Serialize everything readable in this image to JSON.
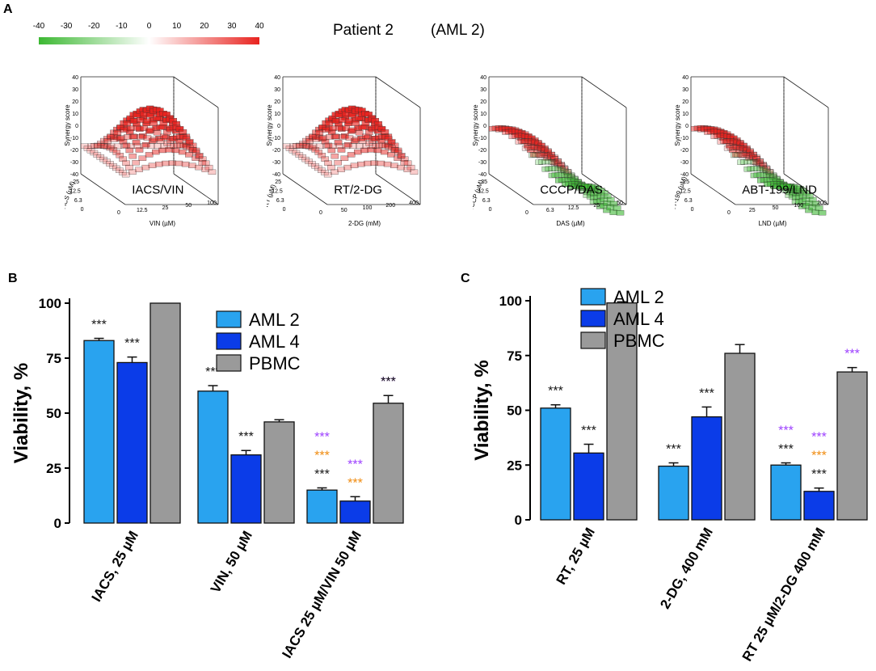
{
  "panel_a": {
    "letter": "A",
    "title": "Patient 2",
    "subtitle": "(AML 2)",
    "scale": {
      "ticks": [
        "-40",
        "-30",
        "-20",
        "-10",
        "0",
        "10",
        "20",
        "30",
        "40"
      ],
      "colors": {
        "neg": "#3cb832",
        "zero": "#ffffff",
        "pos": "#e8231f"
      }
    },
    "surfaces": [
      {
        "label": "IACS/VIN",
        "z_label": "Synergy score",
        "z_ticks": [
          "40",
          "30",
          "20",
          "10",
          "0",
          "-10",
          "-20",
          "-30",
          "-40"
        ],
        "y_label": "IACS (µM)",
        "y_ticks": [
          "25",
          "12.5",
          "6.3",
          "0"
        ],
        "x_label": "VIN (µM)",
        "x_ticks": [
          "0",
          "12.5",
          "25",
          "50",
          "100"
        ],
        "tone": "red"
      },
      {
        "label": "RT/2-DG",
        "z_label": "Synergy score",
        "z_ticks": [
          "40",
          "30",
          "20",
          "10",
          "0",
          "-10",
          "-20",
          "-30",
          "-40"
        ],
        "y_label": "RT (µM)",
        "y_ticks": [
          "25",
          "12.5",
          "6.3",
          "0"
        ],
        "x_label": "2-DG (mM)",
        "x_ticks": [
          "0",
          "50",
          "100",
          "200",
          "400"
        ],
        "tone": "red"
      },
      {
        "label": "CCCP/DAS",
        "z_label": "Synergy score",
        "z_ticks": [
          "40",
          "30",
          "20",
          "10",
          "0",
          "-10",
          "-20",
          "-30",
          "-40"
        ],
        "y_label": "CCCP (µM)",
        "y_ticks": [
          "25",
          "12.5",
          "6.3",
          "0"
        ],
        "x_label": "DAS (µM)",
        "x_ticks": [
          "0",
          "6.3",
          "12.5",
          "25",
          "50"
        ],
        "tone": "mixed"
      },
      {
        "label": "ABT-199/LND",
        "z_label": "Synergy score",
        "z_ticks": [
          "40",
          "30",
          "20",
          "10",
          "0",
          "-10",
          "-20",
          "-30",
          "-40"
        ],
        "y_label": "ABT-199 (µM)",
        "y_ticks": [
          "25",
          "12.5",
          "6.3",
          "0"
        ],
        "x_label": "LND (µM)",
        "x_ticks": [
          "0",
          "25",
          "50",
          "100",
          "200"
        ],
        "tone": "mixed"
      }
    ]
  },
  "chart_data": [
    {
      "panel": "B",
      "type": "bar",
      "title": "",
      "xlabel": "",
      "ylabel": "Viability, %",
      "ylim": [
        0,
        100
      ],
      "yticks": [
        "0",
        "25",
        "50",
        "75",
        "100"
      ],
      "categories": [
        "IACS, 25 µM",
        "VIN, 50 µM",
        "IACS 25 µM/VIN 50 µM"
      ],
      "legend": {
        "position": "top-right",
        "entries": [
          "AML 2",
          "AML 4",
          "PBMC"
        ]
      },
      "series": [
        {
          "name": "AML 2",
          "color": "#29a3ef",
          "values": [
            83,
            60,
            15
          ],
          "errors": [
            1,
            2.5,
            1
          ]
        },
        {
          "name": "AML 4",
          "color": "#0b3ce8",
          "values": [
            73,
            31,
            10
          ],
          "errors": [
            2.5,
            2,
            2
          ]
        },
        {
          "name": "PBMC",
          "color": "#9a9a9a",
          "values": [
            100,
            46,
            54.5
          ],
          "errors": [
            0,
            1,
            3.5
          ]
        }
      ],
      "annotations": [
        {
          "text": "***",
          "category": 0,
          "series": 0,
          "row": 0,
          "color": "#111111"
        },
        {
          "text": "***",
          "category": 0,
          "series": 1,
          "row": 0,
          "color": "#111111"
        },
        {
          "text": "***",
          "category": 1,
          "series": 0,
          "row": 0,
          "color": "#111111"
        },
        {
          "text": "***",
          "category": 1,
          "series": 1,
          "row": 0,
          "color": "#111111"
        },
        {
          "text": "***",
          "category": 2,
          "series": 2,
          "row": 0,
          "color": "#9b3dff"
        },
        {
          "text": "***",
          "category": 2,
          "series": 0,
          "row": 0,
          "color": "#111111"
        },
        {
          "text": "***",
          "category": 2,
          "series": 0,
          "row": 1,
          "color": "#f08a0c"
        },
        {
          "text": "***",
          "category": 2,
          "series": 0,
          "row": 2,
          "color": "#9b3dff"
        },
        {
          "text": "***",
          "category": 2,
          "series": 1,
          "row": 0,
          "color": "#f08a0c"
        },
        {
          "text": "***",
          "category": 2,
          "series": 1,
          "row": 1,
          "color": "#9b3dff"
        },
        {
          "text": "***",
          "category": 2,
          "series": 2,
          "row": 0,
          "color": "#111111"
        }
      ]
    },
    {
      "panel": "C",
      "type": "bar",
      "title": "",
      "xlabel": "",
      "ylabel": "Viability, %",
      "ylim": [
        0,
        100
      ],
      "yticks": [
        "0",
        "25",
        "50",
        "75",
        "100"
      ],
      "categories": [
        "RT, 25 µM",
        "2-DG, 400 mM",
        "RT 25 µM/2-DG 400 mM"
      ],
      "legend": {
        "position": "top-right",
        "entries": [
          "AML 2",
          "AML 4",
          "PBMC"
        ]
      },
      "series": [
        {
          "name": "AML 2",
          "color": "#29a3ef",
          "values": [
            51,
            24.5,
            25
          ],
          "errors": [
            1.5,
            1.5,
            1
          ]
        },
        {
          "name": "AML 4",
          "color": "#0b3ce8",
          "values": [
            30.5,
            47,
            13
          ],
          "errors": [
            4,
            4.5,
            1.5
          ]
        },
        {
          "name": "PBMC",
          "color": "#9a9a9a",
          "values": [
            99,
            76,
            67.5
          ],
          "errors": [
            0.5,
            4,
            2
          ]
        }
      ],
      "annotations": [
        {
          "text": "***",
          "category": 0,
          "series": 0,
          "row": 0,
          "color": "#111111"
        },
        {
          "text": "***",
          "category": 0,
          "series": 1,
          "row": 0,
          "color": "#111111"
        },
        {
          "text": "***",
          "category": 1,
          "series": 0,
          "row": 0,
          "color": "#111111"
        },
        {
          "text": "***",
          "category": 1,
          "series": 1,
          "row": 0,
          "color": "#111111"
        },
        {
          "text": "***",
          "category": 2,
          "series": 0,
          "row": 0,
          "color": "#111111"
        },
        {
          "text": "***",
          "category": 2,
          "series": 0,
          "row": 1,
          "color": "#9b3dff"
        },
        {
          "text": "***",
          "category": 2,
          "series": 1,
          "row": 0,
          "color": "#111111"
        },
        {
          "text": "***",
          "category": 2,
          "series": 1,
          "row": 1,
          "color": "#f08a0c"
        },
        {
          "text": "***",
          "category": 2,
          "series": 1,
          "row": 2,
          "color": "#9b3dff"
        },
        {
          "text": "***",
          "category": 2,
          "series": 2,
          "row": 0,
          "color": "#9b3dff"
        }
      ]
    }
  ]
}
